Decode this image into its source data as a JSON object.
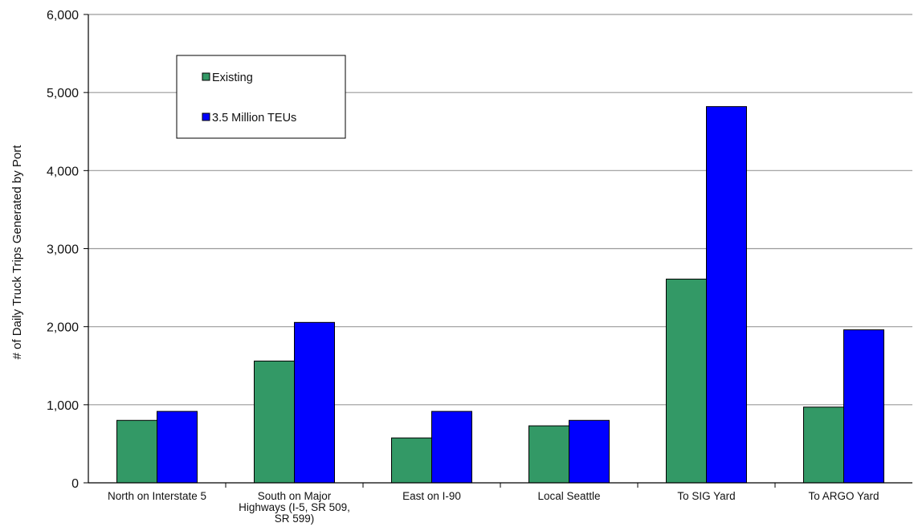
{
  "chart_data": {
    "type": "bar",
    "title": "",
    "xlabel": "",
    "ylabel": "# of  Daily Truck Trips Generated by Port",
    "ylim": [
      0,
      6000
    ],
    "yticks": [
      0,
      1000,
      2000,
      3000,
      4000,
      5000,
      6000
    ],
    "ytick_labels": [
      "0",
      "1,000",
      "2,000",
      "3,000",
      "4,000",
      "5,000",
      "6,000"
    ],
    "grid": true,
    "legend_position": "top-left",
    "categories": [
      [
        "North on Interstate 5"
      ],
      [
        "South on Major",
        "Highways (I-5, SR 509,",
        "SR 599)"
      ],
      [
        "East on I-90"
      ],
      [
        "Local Seattle"
      ],
      [
        "To SIG Yard"
      ],
      [
        "To ARGO Yard"
      ]
    ],
    "series": [
      {
        "name": "Existing",
        "color": "#339966",
        "values": [
          800,
          1560,
          575,
          730,
          2610,
          970
        ]
      },
      {
        "name": "3.5 Million TEUs",
        "color": "#0000ff",
        "values": [
          915,
          2055,
          915,
          800,
          4820,
          1960
        ]
      }
    ]
  }
}
